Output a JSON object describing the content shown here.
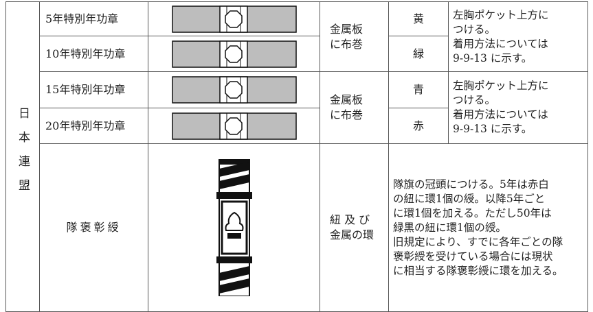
{
  "table": {
    "org": "日本連盟",
    "rows": [
      {
        "name": "5年特別年功章",
        "color": "黄"
      },
      {
        "name": "10年特別年功章",
        "color": "緑"
      },
      {
        "name": "15年特別年功章",
        "color": "青"
      },
      {
        "name": "20年特別年功章",
        "color": "赤"
      }
    ],
    "groups": [
      {
        "material": "金属板\nに布巻",
        "note": "左胸ポケット上方に\nつける。\n着用方法については\n9-9-13 に示す。"
      },
      {
        "material": "金属板\nに布巻",
        "note": "左胸ポケット上方に\nつける。\n着用方法については\n9-9-13 に示す。"
      }
    ],
    "last": {
      "name": "隊褒彰綬",
      "material": "紐 及 び\n金属の環",
      "note": "隊旗の冠頭につける。5年は赤白\nの紐に環1個の綬。以降5年ごと\nに環1個を加える。ただし50年は\n緑黒の紐に環1個の綬。\n旧規定により、すでに各年ごとの隊\n褒彰綬を受けている場合には現状\nに相当する隊褒彰綬に環を加える。"
    }
  }
}
